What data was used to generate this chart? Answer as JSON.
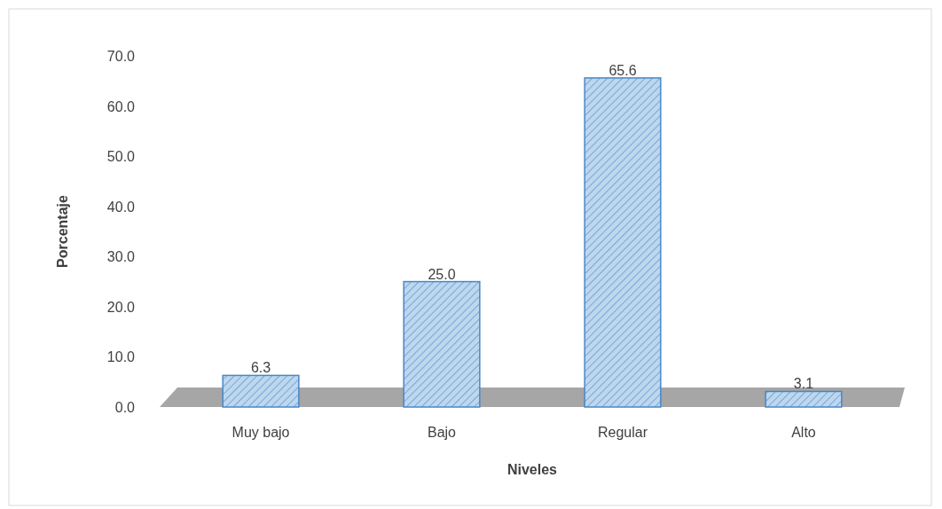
{
  "chart_data": {
    "type": "bar",
    "xlabel": "Niveles",
    "ylabel": "Porcentaje",
    "categories": [
      "Muy bajo",
      "Bajo",
      "Regular",
      "Alto"
    ],
    "values": [
      6.3,
      25.0,
      65.6,
      3.1
    ],
    "value_labels": [
      "6.3",
      "25.0",
      "65.6",
      "3.1"
    ],
    "color": "#bdd7ee",
    "ylim": [
      0,
      70
    ],
    "yticks": [
      {
        "value": 0,
        "label": "0.0"
      },
      {
        "value": 10,
        "label": "10.0"
      },
      {
        "value": 20,
        "label": "20.0"
      },
      {
        "value": 30,
        "label": "30.0"
      },
      {
        "value": 40,
        "label": "40.0"
      },
      {
        "value": 50,
        "label": "50.0"
      },
      {
        "value": 60,
        "label": "60.0"
      },
      {
        "value": 70,
        "label": "70.0"
      }
    ],
    "grid": false
  }
}
